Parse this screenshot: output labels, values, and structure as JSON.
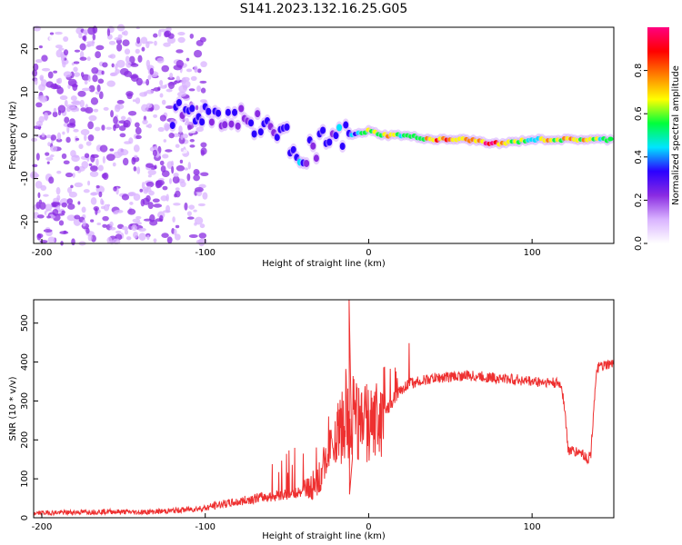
{
  "figure_title": "S141.2023.132.16.25.G05",
  "chart_data": [
    {
      "type": "heatmap",
      "title": "",
      "xlabel": "Height of straight line (km)",
      "ylabel": "Frequency (Hz)",
      "xlim": [
        -205,
        150
      ],
      "ylim": [
        -25,
        25
      ],
      "xticks": [
        -200,
        -100,
        0,
        100
      ],
      "yticks": [
        -20,
        -10,
        0,
        10,
        20
      ],
      "colorbar": {
        "label": "Normalized spectral amplitude",
        "range": [
          0,
          1
        ],
        "ticks": [
          0.0,
          0.2,
          0.4,
          0.6,
          0.8
        ],
        "colormap": [
          "#ffffff",
          "#d9b3ff",
          "#8a2be2",
          "#2b00ff",
          "#00e5ff",
          "#00ff3c",
          "#ffff00",
          "#ff8000",
          "#ff0000",
          "#ff0080"
        ]
      },
      "ridge": [
        {
          "x": -120,
          "f": 5,
          "amp": 0.35
        },
        {
          "x": -100,
          "f": 5,
          "amp": 0.35
        },
        {
          "x": -80,
          "f": 4,
          "amp": 0.3
        },
        {
          "x": -60,
          "f": 2,
          "amp": 0.35
        },
        {
          "x": -50,
          "f": -1,
          "amp": 0.35
        },
        {
          "x": -40,
          "f": -4,
          "amp": 0.4
        },
        {
          "x": -30,
          "f": -2,
          "amp": 0.3
        },
        {
          "x": -20,
          "f": -1,
          "amp": 0.35
        },
        {
          "x": -10,
          "f": 0,
          "amp": 0.5
        },
        {
          "x": 0,
          "f": 1,
          "amp": 0.6
        },
        {
          "x": 10,
          "f": 0,
          "amp": 0.75
        },
        {
          "x": 20,
          "f": 0,
          "amp": 0.5
        },
        {
          "x": 40,
          "f": -1,
          "amp": 0.9
        },
        {
          "x": 60,
          "f": -1,
          "amp": 0.85
        },
        {
          "x": 80,
          "f": -2,
          "amp": 0.9
        },
        {
          "x": 100,
          "f": -1,
          "amp": 0.5
        },
        {
          "x": 120,
          "f": -1,
          "amp": 0.85
        },
        {
          "x": 150,
          "f": -1,
          "amp": 0.45
        }
      ]
    },
    {
      "type": "line",
      "title": "",
      "xlabel": "Height of straight line (km)",
      "ylabel": "SNR (10 * v/v)",
      "xlim": [
        -205,
        150
      ],
      "ylim": [
        0,
        560
      ],
      "xticks": [
        -200,
        -100,
        0,
        100
      ],
      "yticks": [
        0,
        100,
        200,
        300,
        400,
        500
      ],
      "color": "#ee3030",
      "series": [
        {
          "x": [
            -205,
            -180,
            -160,
            -140,
            -120,
            -100,
            -90,
            -80,
            -70,
            -60,
            -50,
            -40,
            -35,
            -30,
            -25,
            -20,
            -17,
            -14,
            -12,
            -10,
            -8,
            -5,
            0,
            5,
            10,
            15,
            20,
            25,
            30,
            40,
            50,
            60,
            70,
            80,
            90,
            100,
            110,
            115,
            118,
            120,
            122,
            125,
            130,
            132,
            134,
            136,
            138,
            140,
            145,
            150
          ],
          "y": [
            12,
            14,
            16,
            14,
            18,
            25,
            35,
            40,
            50,
            55,
            60,
            70,
            80,
            100,
            150,
            200,
            240,
            270,
            220,
            250,
            260,
            245,
            240,
            250,
            270,
            300,
            330,
            345,
            350,
            358,
            362,
            365,
            362,
            358,
            355,
            350,
            348,
            345,
            340,
            280,
            175,
            170,
            168,
            160,
            150,
            165,
            300,
            385,
            390,
            395
          ]
        }
      ],
      "spike": {
        "x": -12,
        "y": 560
      }
    }
  ]
}
